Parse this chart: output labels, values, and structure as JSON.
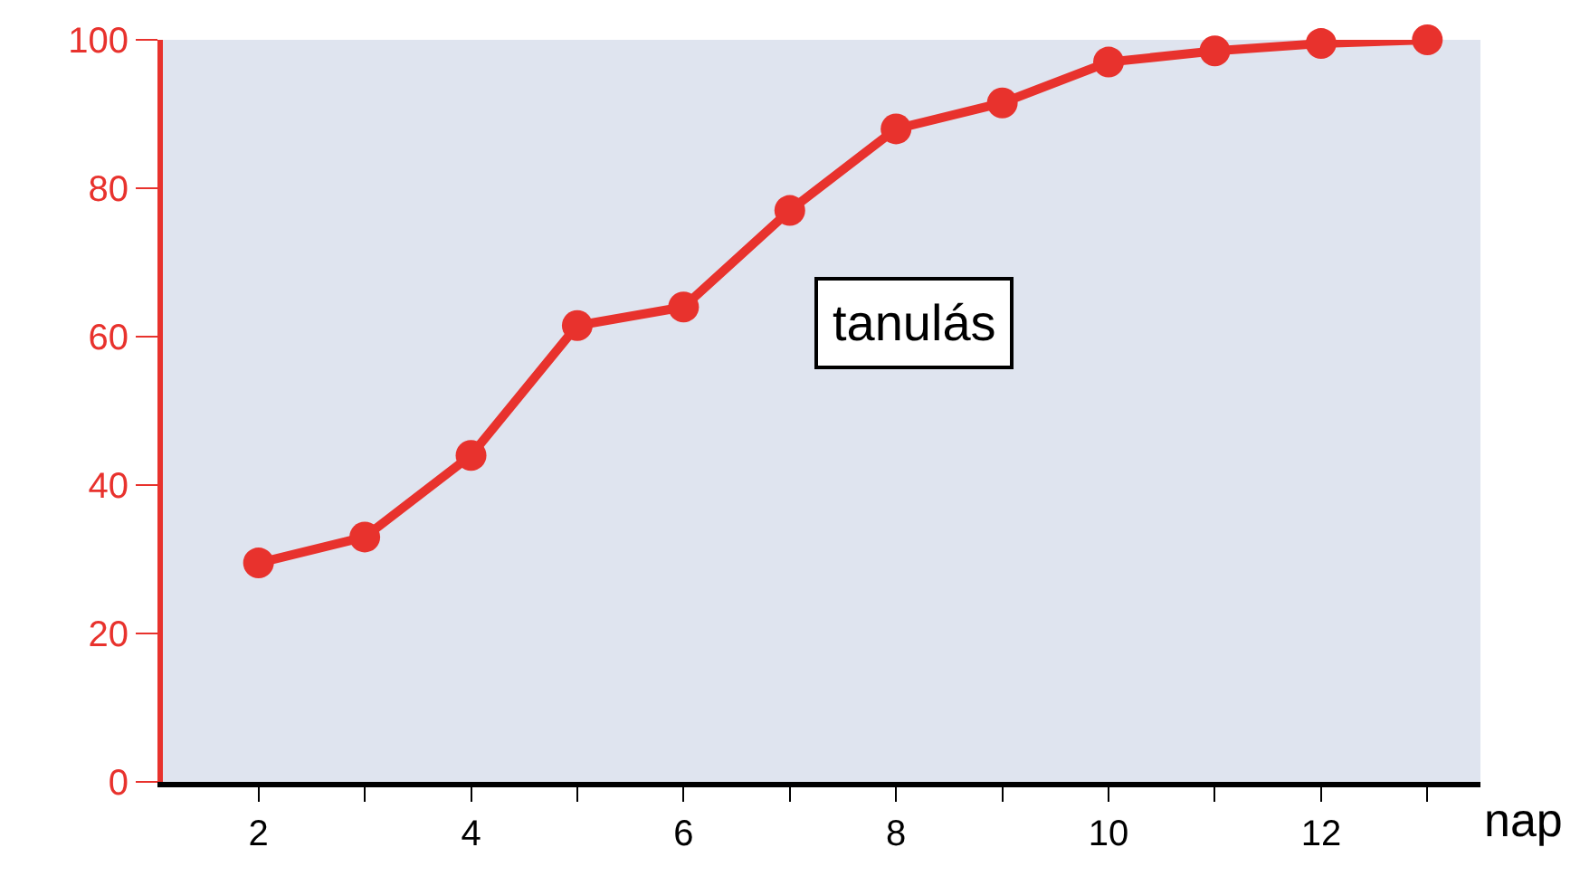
{
  "chart_data": {
    "type": "line",
    "xlabel": "nap",
    "x": [
      2,
      3,
      4,
      5,
      6,
      7,
      8,
      9,
      10,
      11,
      12,
      13
    ],
    "series": [
      {
        "color": "#e8322d",
        "values": [
          29.5,
          33,
          44,
          61.5,
          64,
          77,
          88,
          91.5,
          97,
          98.5,
          99.5,
          100
        ]
      }
    ],
    "xlim": [
      1.1,
      13.5
    ],
    "ylim": [
      0,
      100
    ],
    "xticks": [
      2,
      {
        "value": 3,
        "label": null
      },
      4,
      {
        "value": 5,
        "label": null
      },
      6,
      {
        "value": 7,
        "label": null
      },
      8,
      {
        "value": 9,
        "label": null
      },
      10,
      {
        "value": 11,
        "label": null
      },
      12,
      {
        "value": 13,
        "label": null
      }
    ],
    "yticks": [
      0,
      20,
      40,
      60,
      80,
      100
    ],
    "annotations": [
      "tanulás"
    ],
    "marker": "circle",
    "line_style": "solid",
    "grid": false
  }
}
